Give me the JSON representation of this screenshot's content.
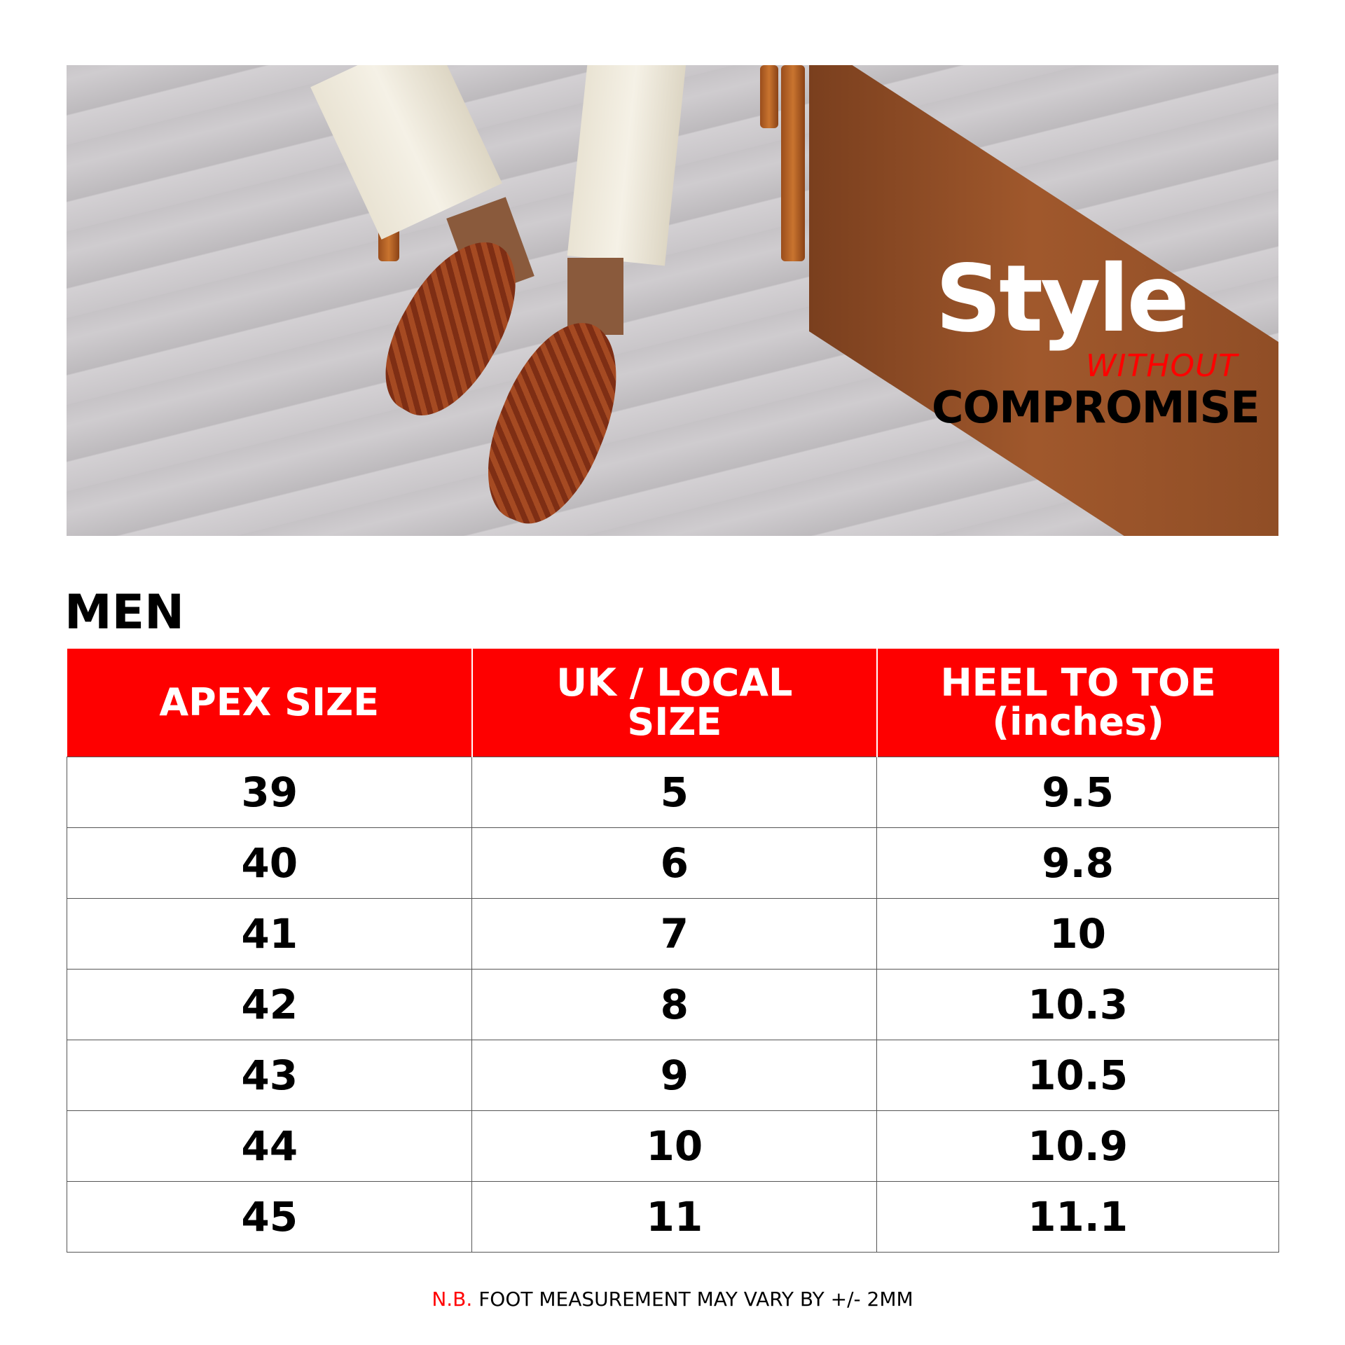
{
  "banner": {
    "title": "Style",
    "subtitle_1": "WITHOUT",
    "subtitle_2": "COMPROMISE"
  },
  "section_title": "MEN",
  "table": {
    "headers": [
      "APEX SIZE",
      "UK / LOCAL SIZE",
      "HEEL TO TOE (inches)"
    ],
    "rows": [
      [
        "39",
        "5",
        "9.5"
      ],
      [
        "40",
        "6",
        "9.8"
      ],
      [
        "41",
        "7",
        "10"
      ],
      [
        "42",
        "8",
        "10.3"
      ],
      [
        "43",
        "9",
        "10.5"
      ],
      [
        "44",
        "10",
        "10.9"
      ],
      [
        "45",
        "11",
        "11.1"
      ]
    ]
  },
  "footer": {
    "prefix": "N.B.",
    "text": "FOOT MEASUREMENT MAY VARY BY +/- 2MM"
  },
  "colors": {
    "accent": "#fe0000"
  }
}
